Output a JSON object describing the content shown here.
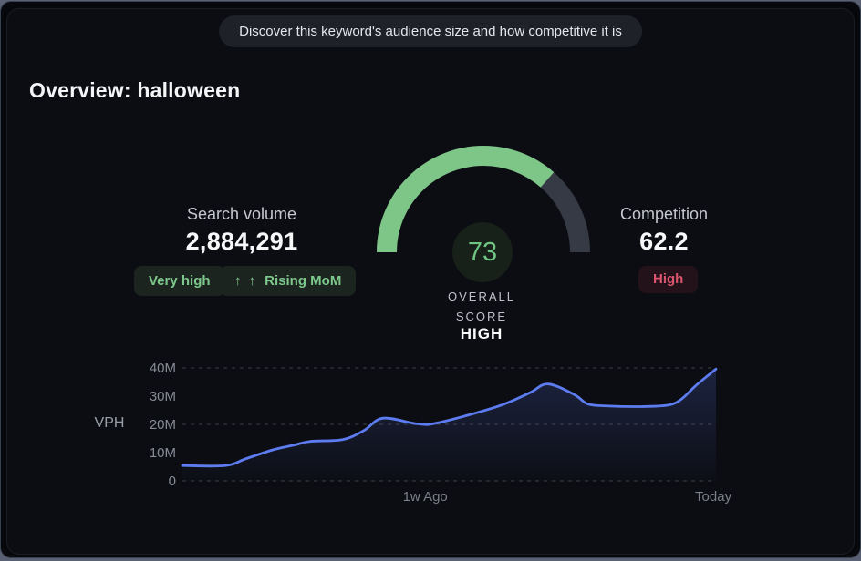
{
  "header": {
    "tooltip": "Discover this keyword's audience size and how competitive it is"
  },
  "page_title": "Overview: halloween",
  "search_volume": {
    "label": "Search volume",
    "value": "2,884,291",
    "level_badge": "Very high",
    "trend_arrows": "↑ ↑",
    "trend_label": "Rising MoM"
  },
  "overall_score": {
    "value": "73",
    "percent": 73,
    "caption_line1": "OVERALL",
    "caption_line2": "SCORE",
    "rating": "HIGH",
    "fill_color": "#7dc687",
    "track_color": "#363a44",
    "circle_bg": "#172019",
    "value_color": "#6fc582"
  },
  "competition": {
    "label": "Competition",
    "value": "62.2",
    "badge": "High",
    "badge_text_color": "#d9566e",
    "badge_bg": "#231219"
  },
  "chart_data": {
    "type": "area",
    "title": "",
    "xlabel": "",
    "ylabel": "VPH",
    "ylim": [
      0,
      40
    ],
    "unit": "M",
    "y_ticks": [
      {
        "label": "40M",
        "value": 40
      },
      {
        "label": "30M",
        "value": 30
      },
      {
        "label": "20M",
        "value": 20
      },
      {
        "label": "10M",
        "value": 10
      },
      {
        "label": "0",
        "value": 0
      }
    ],
    "gridline_values": [
      40,
      20,
      0
    ],
    "grid_style": "dashed",
    "legend": "none",
    "x_labels": [
      {
        "text": "1w Ago",
        "position": 0.455
      },
      {
        "text": "Today",
        "position": 0.995
      }
    ],
    "series": [
      {
        "name": "VPH",
        "points": [
          [
            0.0,
            5.4
          ],
          [
            0.08,
            5.4
          ],
          [
            0.12,
            7.9
          ],
          [
            0.17,
            11.0
          ],
          [
            0.21,
            12.7
          ],
          [
            0.24,
            14.0
          ],
          [
            0.3,
            14.6
          ],
          [
            0.34,
            17.8
          ],
          [
            0.376,
            22.2
          ],
          [
            0.44,
            20.2
          ],
          [
            0.48,
            20.6
          ],
          [
            0.59,
            26.3
          ],
          [
            0.65,
            31.1
          ],
          [
            0.685,
            34.3
          ],
          [
            0.735,
            30.5
          ],
          [
            0.76,
            27.2
          ],
          [
            0.8,
            26.5
          ],
          [
            0.86,
            26.3
          ],
          [
            0.91,
            26.8
          ],
          [
            0.935,
            28.9
          ],
          [
            0.962,
            33.7
          ],
          [
            1.0,
            39.6
          ]
        ]
      }
    ],
    "line_color": "#5c7cf0",
    "fill_color_top": "rgba(86,115,224,0.22)",
    "fill_color_bottom": "rgba(86,115,224,0.01)",
    "grid_color": "#3c4049"
  }
}
